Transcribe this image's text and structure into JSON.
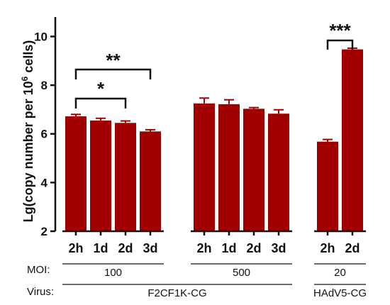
{
  "chart_data": {
    "type": "bar",
    "ylabel_main": "Lg(copy number per 10",
    "ylabel_sup": "6",
    "ylabel_end": " cells)",
    "ylim": [
      2,
      10.8
    ],
    "yticks": [
      2,
      4,
      6,
      8,
      10
    ],
    "bar_color": "#a00000",
    "groups": [
      {
        "moi": "100",
        "virus": "F2CF1K-CG",
        "bars": [
          {
            "label": "2h",
            "value": 6.72,
            "err": 0.08
          },
          {
            "label": "1d",
            "value": 6.55,
            "err": 0.09
          },
          {
            "label": "2d",
            "value": 6.45,
            "err": 0.08
          },
          {
            "label": "3d",
            "value": 6.1,
            "err": 0.07
          }
        ]
      },
      {
        "moi": "500",
        "virus": "F2CF1K-CG",
        "bars": [
          {
            "label": "2h",
            "value": 7.25,
            "err": 0.22
          },
          {
            "label": "1d",
            "value": 7.22,
            "err": 0.18
          },
          {
            "label": "2d",
            "value": 7.03,
            "err": 0.05
          },
          {
            "label": "3d",
            "value": 6.83,
            "err": 0.16
          }
        ]
      },
      {
        "moi": "20",
        "virus": "HAdV5-CG",
        "bars": [
          {
            "label": "2h",
            "value": 5.68,
            "err": 0.09
          },
          {
            "label": "2d",
            "value": 9.47,
            "err": 0.05
          }
        ]
      }
    ],
    "significance": [
      {
        "from": 0,
        "to": 2,
        "label": "*"
      },
      {
        "from": 0,
        "to": 3,
        "label": "**"
      },
      {
        "from": 8,
        "to": 9,
        "label": "***"
      }
    ]
  },
  "rows": {
    "moi_label": "MOI:",
    "virus_label": "Virus:",
    "virus_groups": [
      {
        "label": "F2CF1K-CG",
        "from": 0,
        "to": 7
      },
      {
        "label": "HAdV5-CG",
        "from": 8,
        "to": 9
      }
    ]
  }
}
